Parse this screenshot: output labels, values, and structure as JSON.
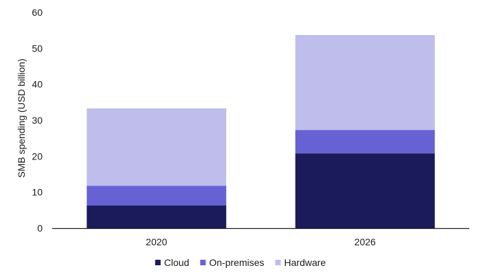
{
  "chart_data": {
    "type": "bar",
    "stacked": true,
    "categories": [
      "2020",
      "2026"
    ],
    "series": [
      {
        "name": "Cloud",
        "values": [
          6.3,
          20.8
        ],
        "color": "#1b1a5b"
      },
      {
        "name": "On-premises",
        "values": [
          5.5,
          6.5
        ],
        "color": "#6762d4"
      },
      {
        "name": "Hardware",
        "values": [
          21.5,
          26.4
        ],
        "color": "#bfbdec"
      }
    ],
    "ylabel": "SMB spending (USD billion)",
    "xlabel": "",
    "ylim": [
      0,
      60
    ],
    "yticks": [
      "0",
      "10",
      "20",
      "30",
      "40",
      "50",
      "60"
    ],
    "grid": false,
    "legend_position": "bottom-center"
  }
}
